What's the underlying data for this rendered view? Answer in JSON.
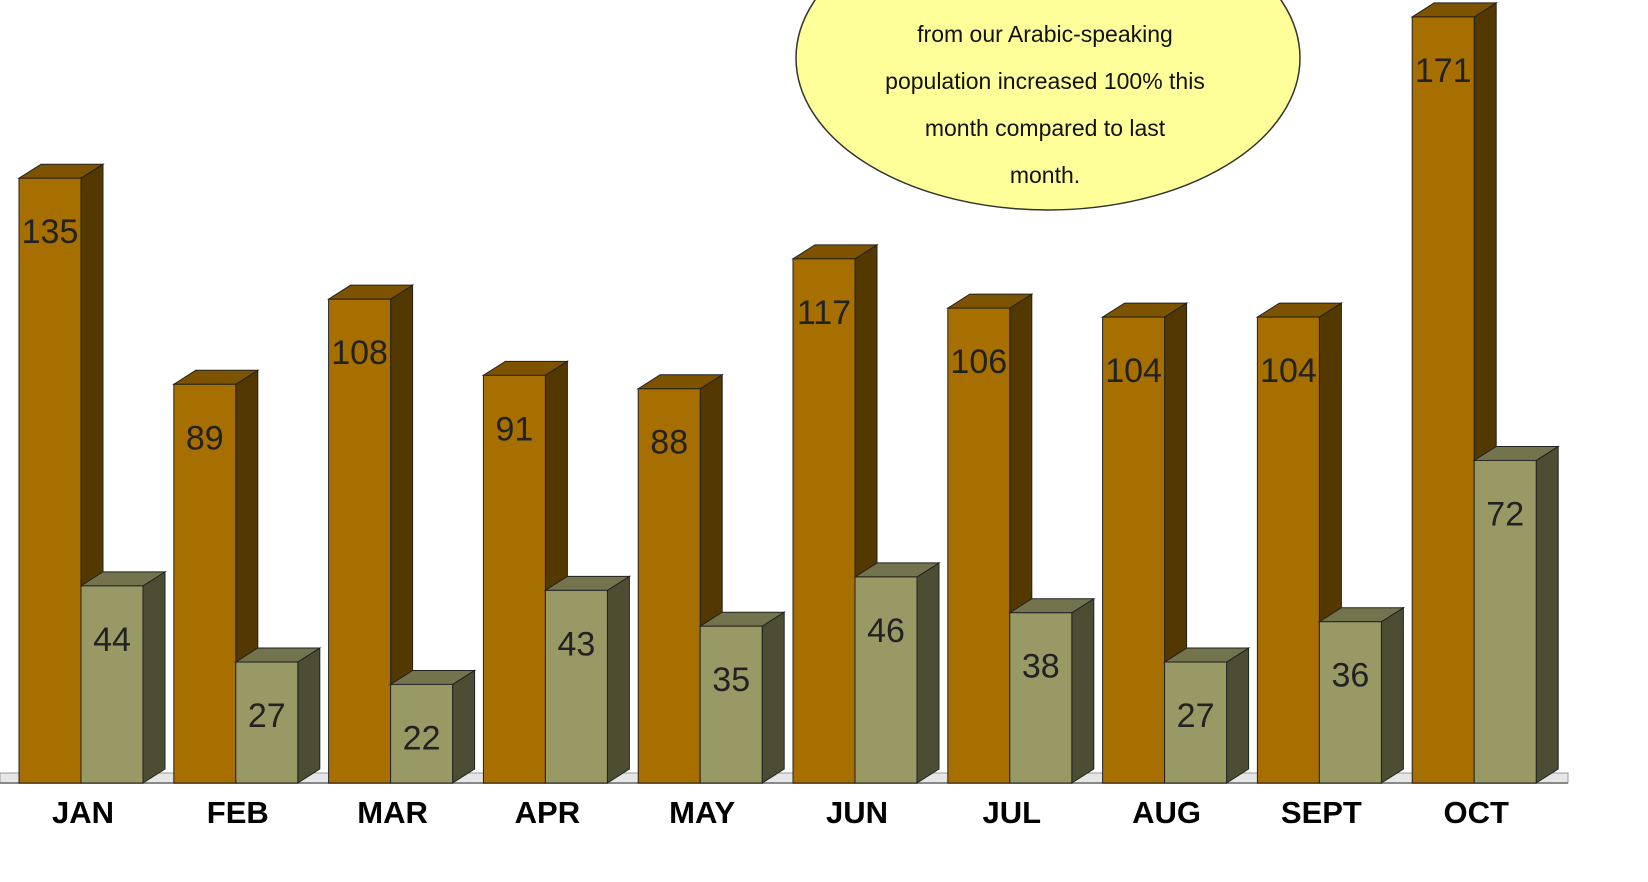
{
  "chart_data": {
    "type": "bar3d",
    "categories": [
      "JAN",
      "FEB",
      "MAR",
      "APR",
      "MAY",
      "JUN",
      "JUL",
      "AUG",
      "SEPT",
      "OCT"
    ],
    "series": [
      {
        "color": "#a66f00",
        "values": [
          135,
          89,
          108,
          91,
          88,
          117,
          106,
          104,
          104,
          171
        ]
      },
      {
        "color": "#999966",
        "values": [
          44,
          27,
          22,
          43,
          35,
          46,
          38,
          27,
          36,
          72
        ]
      }
    ],
    "annotation": [
      "from our Arabic-speaking",
      "population increased 100% this",
      "month compared to last",
      "month."
    ]
  }
}
